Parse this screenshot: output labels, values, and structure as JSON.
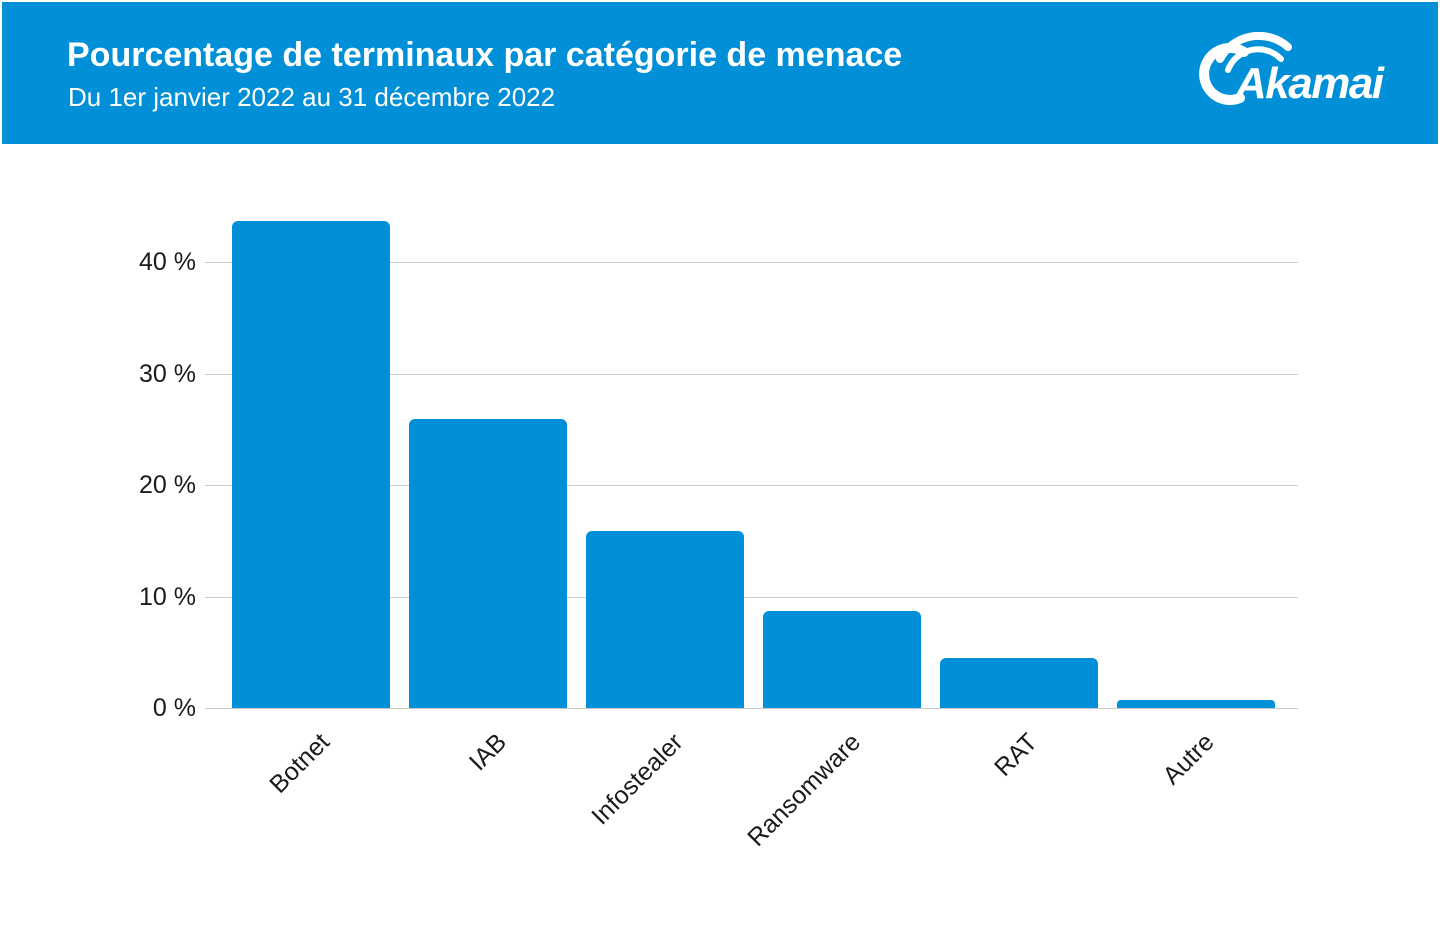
{
  "header": {
    "title": "Pourcentage de terminaux par catégorie de menace",
    "subtitle": "Du 1er janvier 2022 au 31 décembre 2022",
    "logo_text": "Akamai"
  },
  "colors": {
    "accent_blue": "#0190D8",
    "gridline": "#CCCCCC",
    "axis_text": "#1B1B1B",
    "header_text": "#FFFFFF"
  },
  "chart_data": {
    "type": "bar",
    "title": "Pourcentage de terminaux par catégorie de menace",
    "subtitle": "Du 1er janvier 2022 au 31 décembre 2022",
    "categories": [
      "Botnet",
      "IAB",
      "Infostealer",
      "Ransomware",
      "RAT",
      "Autre"
    ],
    "values": [
      43.7,
      25.9,
      15.9,
      8.7,
      4.5,
      0.7
    ],
    "unit": "%",
    "xlabel": "",
    "ylabel": "",
    "ylim": [
      0,
      45
    ],
    "yticks": [
      0,
      10,
      20,
      30,
      40
    ],
    "ytick_labels": [
      "0 %",
      "10 %",
      "20 %",
      "30 %",
      "40 %"
    ],
    "grid": true,
    "legend": false,
    "bar_color": "#0190D8",
    "x_label_rotation": -45
  }
}
